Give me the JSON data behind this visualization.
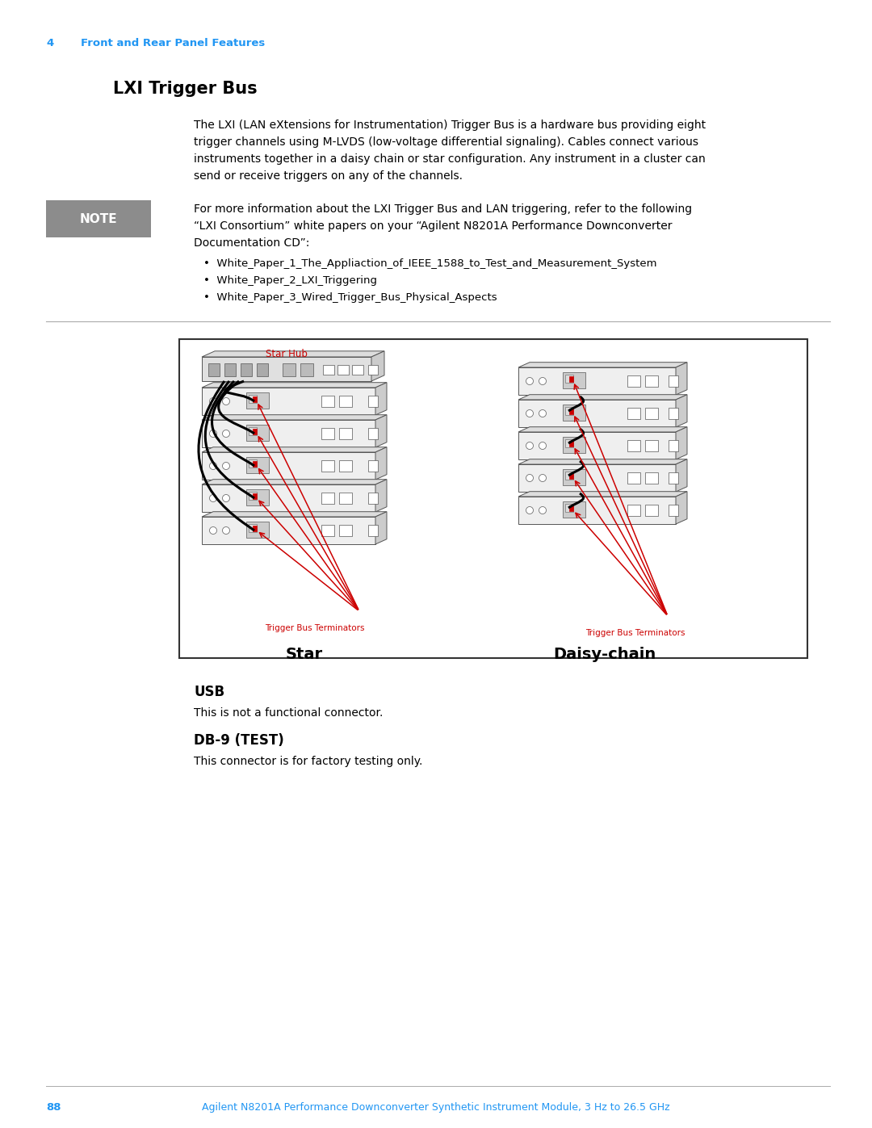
{
  "page_num": "4",
  "chapter_header": "Front and Rear Panel Features",
  "header_color": "#2196F3",
  "section_title": "LXI Trigger Bus",
  "body_line1": "The LXI (LAN eXtensions for Instrumentation) Trigger Bus is a hardware bus providing eight",
  "body_line2": "trigger channels using M-LVDS (low-voltage differential signaling). Cables connect various",
  "body_line3": "instruments together in a daisy chain or star configuration. Any instrument in a cluster can",
  "body_line4": "send or receive triggers on any of the channels.",
  "note_label": "NOTE",
  "note_line1": "For more information about the LXI Trigger Bus and LAN triggering, refer to the following",
  "note_line2": "“LXI Consortium” white papers on your “Agilent N8201A Performance Downconverter",
  "note_line3": "Documentation CD”:",
  "bullet1": "White_Paper_1_The_Appliaction_of_IEEE_1588_to_Test_and_Measurement_System",
  "bullet2": "White_Paper_2_LXI_Triggering",
  "bullet3": "White_Paper_3_Wired_Trigger_Bus_Physical_Aspects",
  "usb_title": "USB",
  "usb_text": "This is not a functional connector.",
  "db9_title": "DB-9 (TEST)",
  "db9_text": "This connector is for factory testing only.",
  "footer_page": "88",
  "footer_text": "Agilent N8201A Performance Downconverter Synthetic Instrument Module, 3 Hz to 26.5 GHz",
  "footer_color": "#2196F3",
  "star_hub_label": "Star Hub",
  "term_label": "Trigger Bus Terminators",
  "star_label": "Star",
  "daisy_label": "Daisy-chain",
  "red": "#CC0000",
  "black": "#000000",
  "white": "#FFFFFF",
  "note_gray": "#8C8C8C",
  "light_gray": "#E0E0E0",
  "mid_gray": "#C8C8C8",
  "dark_gray": "#999999",
  "border": "#444444"
}
